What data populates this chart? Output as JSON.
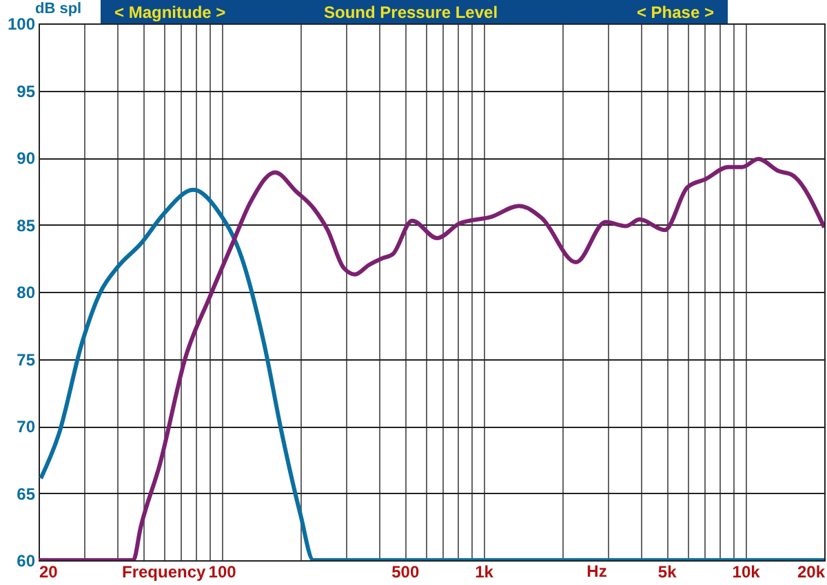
{
  "chart_data": {
    "type": "line",
    "title": "Sound Pressure Level",
    "ylabel": "dB spl",
    "xlabel": "Frequency",
    "annotations": [
      "< Magnitude >",
      "< Phase >",
      "Hz"
    ],
    "log": "x",
    "grid": true,
    "marker": "none",
    "line_style": "solid",
    "xlim": [
      20,
      20000
    ],
    "ylim": [
      60,
      100
    ],
    "yticks": [
      60,
      65,
      70,
      75,
      80,
      85,
      90,
      95,
      100
    ],
    "xticks": [
      20,
      {
        "value": 30,
        "label": null
      },
      {
        "value": 40,
        "label": null
      },
      {
        "value": 50,
        "label": null
      },
      {
        "value": 60,
        "label": null
      },
      {
        "value": 70,
        "label": null
      },
      {
        "value": 80,
        "label": null
      },
      {
        "value": 90,
        "label": null
      },
      100,
      {
        "value": 200,
        "label": null
      },
      {
        "value": 300,
        "label": null
      },
      {
        "value": 400,
        "label": null
      },
      500,
      {
        "value": 600,
        "label": null
      },
      {
        "value": 700,
        "label": null
      },
      {
        "value": 800,
        "label": null
      },
      {
        "value": 900,
        "label": null
      },
      {
        "value": 1000,
        "label": "1k"
      },
      {
        "value": 2000,
        "label": null
      },
      {
        "value": 3000,
        "label": null
      },
      {
        "value": 4000,
        "label": null
      },
      {
        "value": 5000,
        "label": "5k"
      },
      {
        "value": 6000,
        "label": null
      },
      {
        "value": 7000,
        "label": null
      },
      {
        "value": 8000,
        "label": null
      },
      {
        "value": 9000,
        "label": null
      },
      {
        "value": 10000,
        "label": "10k"
      },
      {
        "value": 20000,
        "label": "20k"
      }
    ],
    "series": [
      {
        "color": "#0b6fa0",
        "x": [
          20.4,
          23.9,
          29.3,
          34.3,
          40.3,
          49.2,
          60,
          78,
          97,
          119,
          145,
          170,
          200,
          224,
          20000
        ],
        "values": [
          66.1,
          69.4,
          76.2,
          79.9,
          81.9,
          83.6,
          85.8,
          87.6,
          86.0,
          82.6,
          76.2,
          69.4,
          63.4,
          60,
          60
        ]
      },
      {
        "color": "#7b2170",
        "x": [
          20,
          46,
          49,
          58,
          73,
          90,
          110,
          129,
          160,
          192,
          225,
          254,
          292,
          323,
          365,
          411,
          450,
          534,
          665,
          811,
          1075,
          1368,
          1668,
          2254,
          2924,
          3500,
          3945,
          4920,
          6010,
          7050,
          8610,
          9720,
          11200,
          13400,
          15100,
          20000
        ],
        "values": [
          60,
          60,
          62.4,
          67.1,
          75.2,
          79.6,
          83.6,
          86.7,
          88.9,
          87.5,
          86.2,
          84.6,
          81.8,
          81.3,
          82.0,
          82.5,
          82.8,
          85.3,
          84.0,
          85.1,
          85.6,
          86.4,
          85.5,
          82.2,
          85.2,
          84.9,
          85.4,
          84.6,
          87.8,
          88.4,
          89.3,
          89.3,
          89.9,
          89.0,
          88.7,
          84.8
        ]
      }
    ]
  }
}
